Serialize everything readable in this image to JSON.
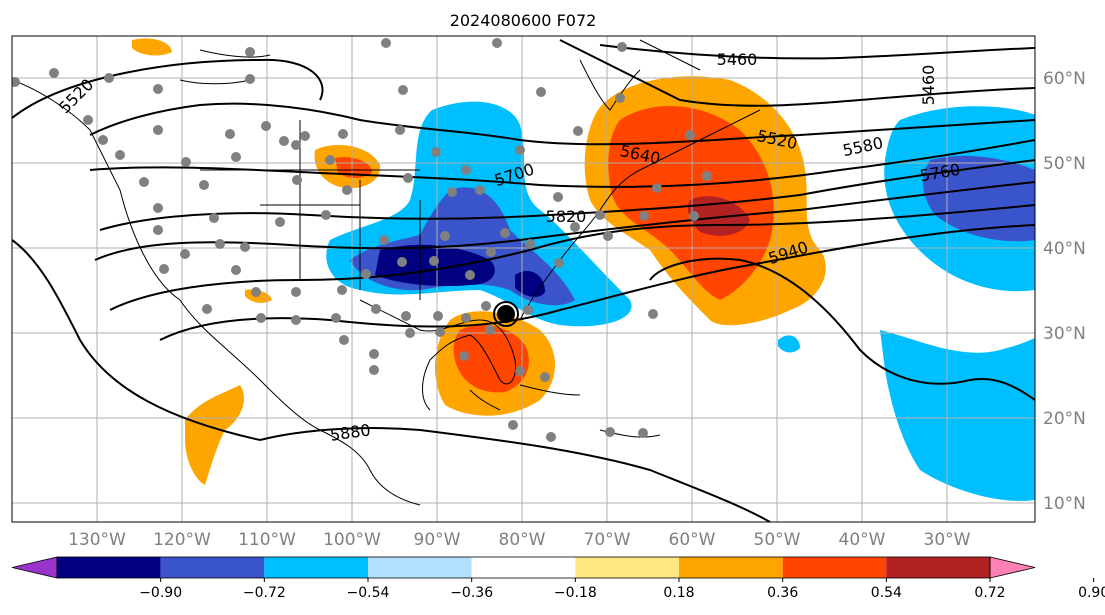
{
  "title": "2024080600 F072",
  "map": {
    "lon_ticks": [
      "130°W",
      "120°W",
      "110°W",
      "100°W",
      "90°W",
      "80°W",
      "70°W",
      "60°W",
      "50°W",
      "40°W",
      "30°W"
    ],
    "lat_ticks": [
      "60°N",
      "50°N",
      "40°N",
      "30°N",
      "20°N",
      "10°N"
    ],
    "contour_labels": [
      {
        "text": "5460",
        "id": "c5460a"
      },
      {
        "text": "5460",
        "id": "c5460b"
      },
      {
        "text": "5520",
        "id": "c5520"
      },
      {
        "text": "5580",
        "id": "c5580"
      },
      {
        "text": "5640",
        "id": "c5640"
      },
      {
        "text": "5700",
        "id": "c5700"
      },
      {
        "text": "5760",
        "id": "c5760"
      },
      {
        "text": "5820",
        "id": "c5820"
      },
      {
        "text": "5880",
        "id": "c5880"
      },
      {
        "text": "5940",
        "id": "c5940"
      },
      {
        "text": "5520",
        "id": "c5520w"
      }
    ]
  },
  "colorbar": {
    "ticks": [
      "−0.90",
      "−0.72",
      "−0.54",
      "−0.36",
      "−0.18",
      "0.18",
      "0.36",
      "0.54",
      "0.72",
      "0.90"
    ],
    "colors": [
      "#9933cc",
      "#000080",
      "#3a55cc",
      "#00bfff",
      "#b3e0ff",
      "#ffffff",
      "#ffe680",
      "#ffa500",
      "#ff4500",
      "#b22222",
      "#ff80b3"
    ]
  }
}
